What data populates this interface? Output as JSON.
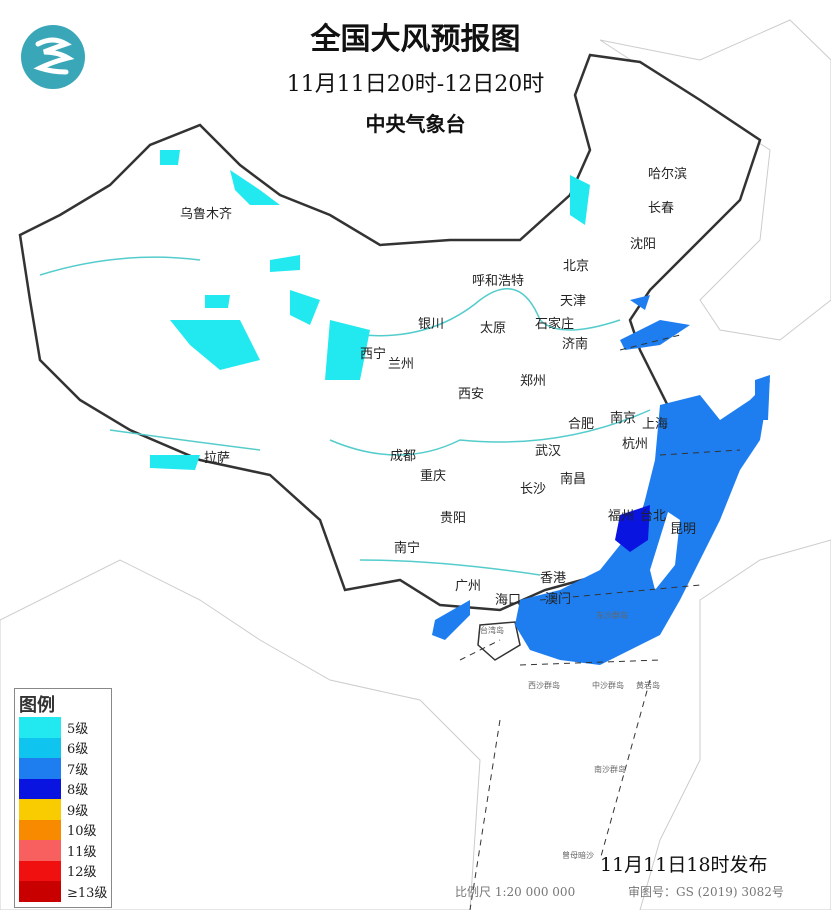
{
  "header": {
    "title": "全国大风预报图",
    "period": "11月11日20时-12日20时",
    "issuer": "中央气象台"
  },
  "legend": {
    "title": "图例",
    "items": [
      {
        "label": "5级",
        "color": "#22E8F0"
      },
      {
        "label": "6级",
        "color": "#10C4F0"
      },
      {
        "label": "7级",
        "color": "#1E7EF0"
      },
      {
        "label": "8级",
        "color": "#0A14E0"
      },
      {
        "label": "9级",
        "color": "#F8CC00"
      },
      {
        "label": "10级",
        "color": "#F88A00"
      },
      {
        "label": "11级",
        "color": "#F86060"
      },
      {
        "label": "12级",
        "color": "#F01010"
      },
      {
        "label": "≥13级",
        "color": "#C80000"
      }
    ]
  },
  "cities": [
    "乌鲁木齐",
    "哈尔滨",
    "长春",
    "沈阳",
    "北京",
    "呼和浩特",
    "天津",
    "石家庄",
    "太原",
    "济南",
    "银川",
    "西宁",
    "兰州",
    "郑州",
    "西安",
    "南京",
    "上海",
    "合肥",
    "杭州",
    "武汉",
    "成都",
    "重庆",
    "拉萨",
    "长沙",
    "南昌",
    "贵阳",
    "福州",
    "台北",
    "昆明",
    "南宁",
    "广州",
    "香港",
    "澳门",
    "海口",
    "台湾岛",
    "东沙群岛",
    "西沙群岛",
    "中沙群岛",
    "黄岩岛",
    "南沙群岛",
    "曾母暗沙"
  ],
  "footer": {
    "issued": "11月11日18时发布",
    "scale": "比例尺 1:20 000 000",
    "approval": "审图号：GS (2019) 3082号"
  }
}
